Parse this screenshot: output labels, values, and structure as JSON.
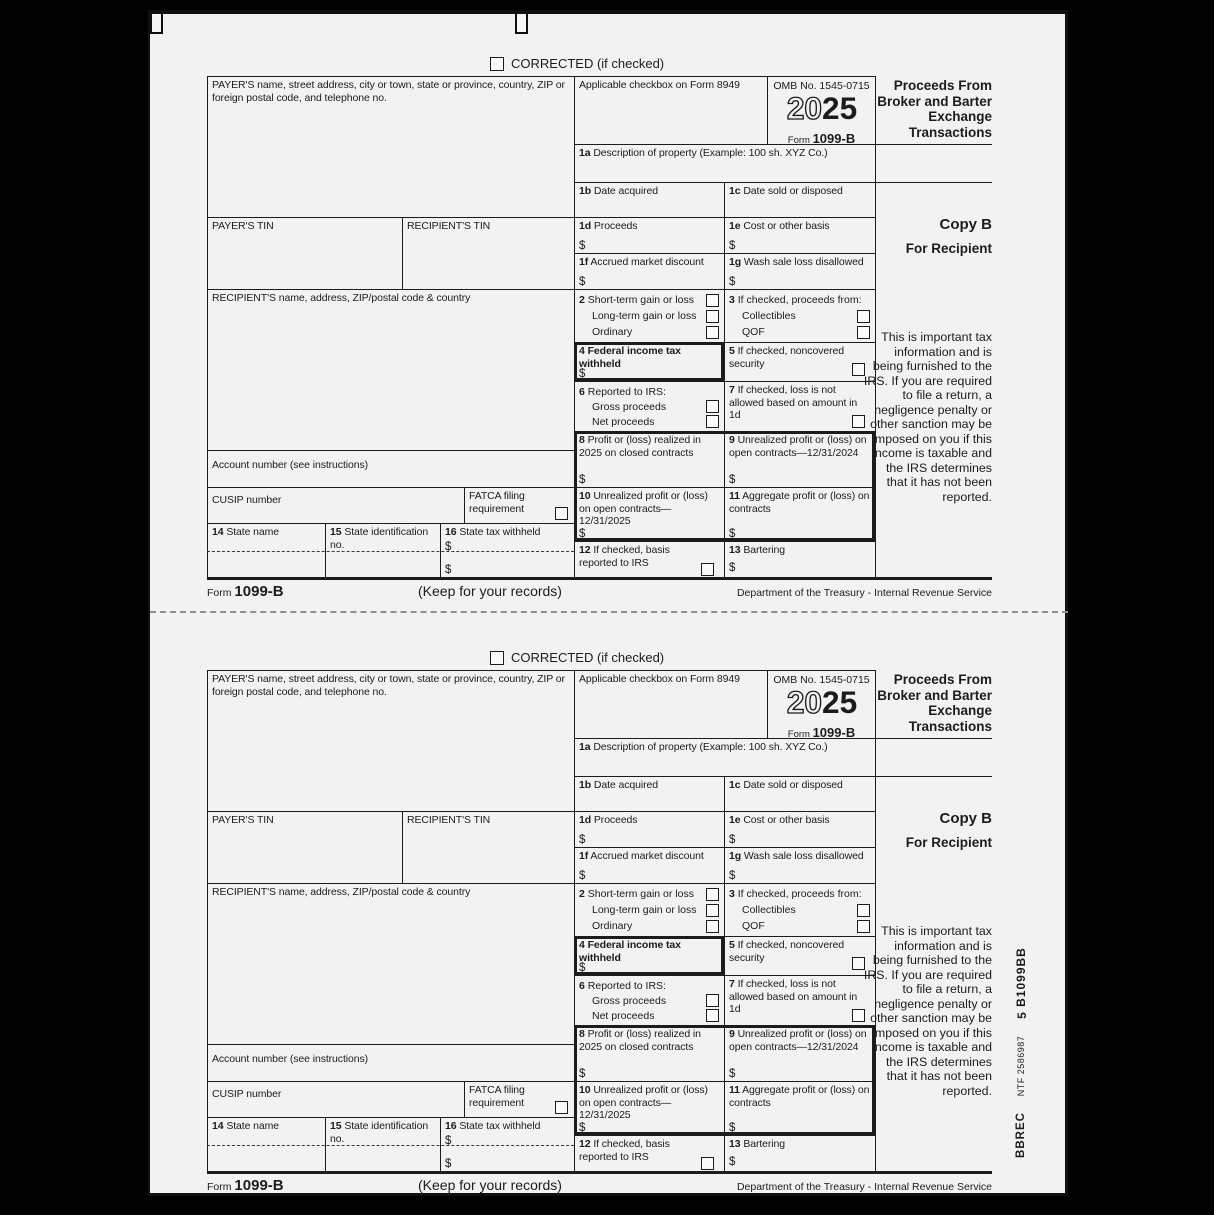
{
  "colors": {
    "background": "#000000",
    "paper": "#f2f2f2",
    "line": "#1c1c1c"
  },
  "side_codes": {
    "bbrec": "BBREC",
    "ntf": "NTF 2586987",
    "qty": "5",
    "code": "B1099BB"
  },
  "copy": {
    "corrected_label": "CORRECTED (if checked)",
    "payer_label": "PAYER'S name, street address, city or town, state or province, country, ZIP or foreign postal code, and telephone no.",
    "applicable_label": "Applicable checkbox on Form 8949",
    "omb": "OMB No. 1545-0715",
    "year_outline": "20",
    "year_bold": "25",
    "form_word": "Form",
    "form_number": "1099-B",
    "title": "Proceeds From Broker and Barter Exchange Transactions",
    "copy_b": "Copy B",
    "for_recipient": "For Recipient",
    "notice": "This is important tax information and is being furnished to the IRS. If you are required to file a return, a negligence penalty or other sanction may be imposed on you if this income is taxable and the IRS determines that it has not been reported.",
    "dollar": "$",
    "payer_tin": "PAYER'S TIN",
    "recipient_tin": "RECIPIENT'S TIN",
    "recipient_label": "RECIPIENT'S name, address, ZIP/postal code & country",
    "account_label": "Account number (see instructions)",
    "cusip_label": "CUSIP number",
    "fatca_label": "FATCA filing requirement",
    "boxes": {
      "b1a": {
        "num": "1a",
        "label": "Description of property (Example: 100 sh. XYZ Co.)"
      },
      "b1b": {
        "num": "1b",
        "label": "Date acquired"
      },
      "b1c": {
        "num": "1c",
        "label": "Date sold or disposed"
      },
      "b1d": {
        "num": "1d",
        "label": "Proceeds"
      },
      "b1e": {
        "num": "1e",
        "label": "Cost or other basis"
      },
      "b1f": {
        "num": "1f",
        "label": "Accrued market discount"
      },
      "b1g": {
        "num": "1g",
        "label": "Wash sale loss disallowed"
      },
      "b2": {
        "num": "2",
        "label": "Short-term gain or loss",
        "line2": "Long-term gain or loss",
        "line3": "Ordinary"
      },
      "b3": {
        "num": "3",
        "label": "If checked, proceeds from:",
        "line2": "Collectibles",
        "line3": "QOF"
      },
      "b4": {
        "num": "4",
        "label": "Federal income tax withheld"
      },
      "b5": {
        "num": "5",
        "label": "If checked, noncovered security"
      },
      "b6": {
        "num": "6",
        "label": "Reported to IRS:",
        "line2": "Gross proceeds",
        "line3": "Net proceeds"
      },
      "b7": {
        "num": "7",
        "label": "If checked, loss is not allowed based on amount in 1d"
      },
      "b8": {
        "num": "8",
        "label": "Profit or (loss) realized in 2025 on closed contracts"
      },
      "b9": {
        "num": "9",
        "label": "Unrealized profit or (loss) on open contracts—12/31/2024"
      },
      "b10": {
        "num": "10",
        "label": "Unrealized profit or (loss) on open contracts—12/31/2025"
      },
      "b11": {
        "num": "11",
        "label": "Aggregate profit or (loss) on contracts"
      },
      "b12": {
        "num": "12",
        "label": "If checked, basis reported to IRS"
      },
      "b13": {
        "num": "13",
        "label": "Bartering"
      },
      "b14": {
        "num": "14",
        "label": "State name"
      },
      "b15": {
        "num": "15",
        "label": "State identification no."
      },
      "b16": {
        "num": "16",
        "label": "State tax withheld"
      }
    },
    "footer": {
      "keep": "(Keep for your records)",
      "dept": "Department of the Treasury - Internal Revenue Service"
    }
  }
}
